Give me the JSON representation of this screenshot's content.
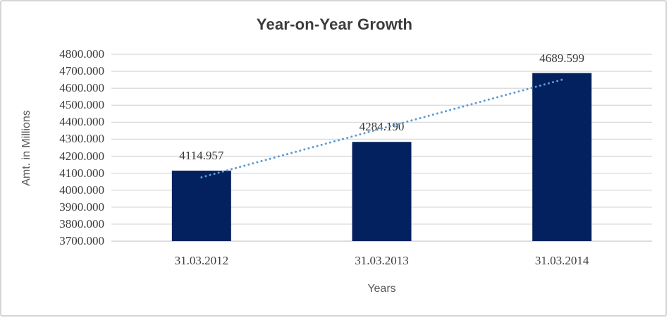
{
  "chart_data": {
    "type": "bar",
    "title": "Year-on-Year Growth",
    "ylabel": "Amt. in Millions",
    "xlabel": "Years",
    "categories": [
      "31.03.2012",
      "31.03.2013",
      "31.03.2014"
    ],
    "values": [
      4114.957,
      4284.19,
      4689.599
    ],
    "data_labels": [
      "4114.957",
      "4284.190",
      "4689.599"
    ],
    "ylim": [
      3700,
      4800
    ],
    "ytick_step": 100,
    "ytick_decimals": 3,
    "grid": true,
    "legend": "none",
    "trendline": {
      "type": "linear",
      "style": "dotted"
    },
    "colors": {
      "bar": "#02215e",
      "trendline": "#5b9bd5",
      "gridline": "#d9d9d9",
      "axis_line": "#c9c9c9",
      "title_text": "#3c3c3c",
      "tick_text": "#3b3b3b",
      "axis_title_text": "#595959",
      "frame_border": "#d6d6d6",
      "background": "#ffffff"
    }
  }
}
